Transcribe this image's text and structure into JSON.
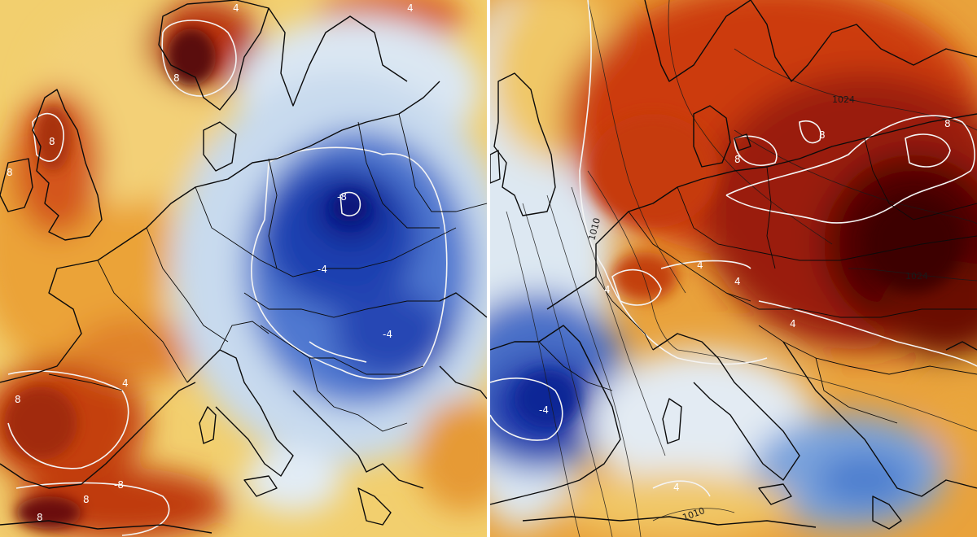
{
  "left_map": {
    "contour_labels": [
      "-8",
      "8",
      "8",
      "8",
      "4",
      "4",
      "-4",
      "8",
      "4",
      "-8",
      "8",
      "8",
      "-4"
    ]
  },
  "right_map": {
    "contour_labels": [
      "8",
      "8",
      "8",
      "4",
      "4",
      "4",
      "4",
      "4",
      "-4"
    ],
    "isobar_labels": [
      "1010",
      "1024",
      "1024",
      "1010"
    ]
  },
  "colors": {
    "warm_dark": "#4a0606",
    "warm": "#c8380f",
    "warm_light": "#e8902a",
    "neutral": "#f3d88a",
    "cool_light": "#dfe8f2",
    "cool": "#3a63c2",
    "cool_dark": "#0a1f8a"
  }
}
